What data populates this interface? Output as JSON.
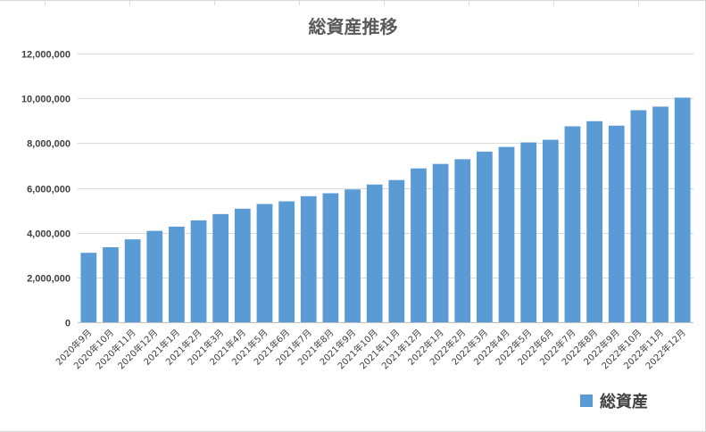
{
  "chart_data": {
    "type": "bar",
    "title": "総資産推移",
    "xlabel": "",
    "ylabel": "",
    "ylim": [
      0,
      12000000
    ],
    "yticks": [
      "0",
      "2,000,000",
      "4,000,000",
      "6,000,000",
      "8,000,000",
      "10,000,000",
      "12,000,000"
    ],
    "grid": true,
    "legend_position": "bottom-right",
    "categories": [
      "2020年9月",
      "2020年10月",
      "2020年11月",
      "2020年12月",
      "2021年1月",
      "2021年2月",
      "2021年3月",
      "2021年4月",
      "2021年5月",
      "2021年6月",
      "2021年7月",
      "2021年8月",
      "2021年9月",
      "2021年10月",
      "2021年11月",
      "2021年12月",
      "2022年1月",
      "2022年2月",
      "2022年3月",
      "2022年4月",
      "2022年5月",
      "2022年6月",
      "2022年7月",
      "2022年8月",
      "2022年9月",
      "2022年10月",
      "2022年11月",
      "2022年12月"
    ],
    "series": [
      {
        "name": "総資産",
        "color": "#5b9bd5",
        "values": [
          3100000,
          3350000,
          3700000,
          4080000,
          4270000,
          4550000,
          4830000,
          5070000,
          5280000,
          5400000,
          5630000,
          5760000,
          5930000,
          6150000,
          6350000,
          6870000,
          7070000,
          7280000,
          7620000,
          7830000,
          8030000,
          8150000,
          8750000,
          8980000,
          8780000,
          9470000,
          9630000,
          10030000
        ]
      }
    ]
  }
}
